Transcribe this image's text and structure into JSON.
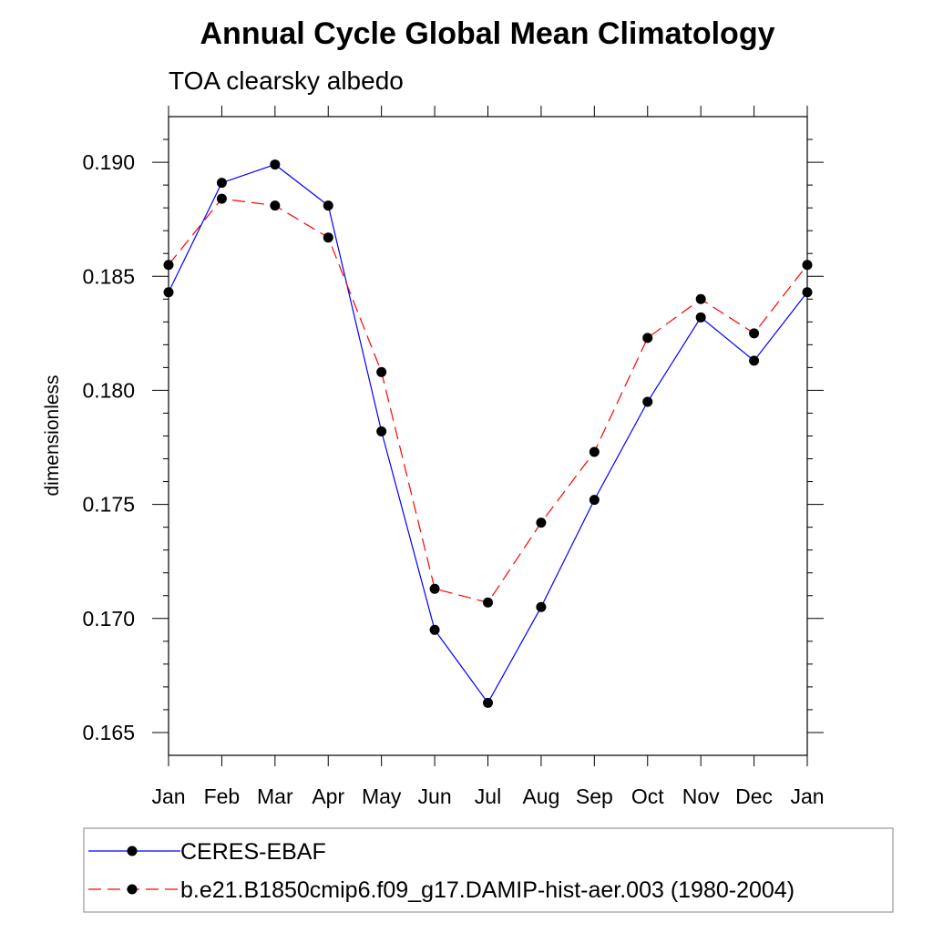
{
  "chart_data": {
    "type": "line",
    "title": "Annual Cycle Global Mean Climatology",
    "subtitle": "TOA clearsky albedo",
    "xlabel": "",
    "ylabel": "dimensionless",
    "categories": [
      "Jan",
      "Feb",
      "Mar",
      "Apr",
      "May",
      "Jun",
      "Jul",
      "Aug",
      "Sep",
      "Oct",
      "Nov",
      "Dec",
      "Jan"
    ],
    "ylim": [
      0.164,
      0.192
    ],
    "yticks": [
      0.165,
      0.17,
      0.175,
      0.18,
      0.185,
      0.19
    ],
    "ytick_labels": [
      "0.165",
      "0.170",
      "0.175",
      "0.180",
      "0.185",
      "0.190"
    ],
    "series": [
      {
        "name": "CERES-EBAF",
        "color": "#0000ff",
        "dash": "solid",
        "values": [
          0.1843,
          0.1891,
          0.1899,
          0.1881,
          0.1782,
          0.1695,
          0.1663,
          0.1705,
          0.1752,
          0.1795,
          0.1832,
          0.1813,
          0.1843
        ]
      },
      {
        "name": "b.e21.B1850cmip6.f09_g17.DAMIP-hist-aer.003 (1980-2004)",
        "color": "#ff0000",
        "dash": "dashed",
        "values": [
          0.1855,
          0.1884,
          0.1881,
          0.1867,
          0.1808,
          0.1713,
          0.1707,
          0.1742,
          0.1773,
          0.1823,
          0.184,
          0.1825,
          0.1855
        ]
      }
    ],
    "legend_position": "bottom"
  }
}
